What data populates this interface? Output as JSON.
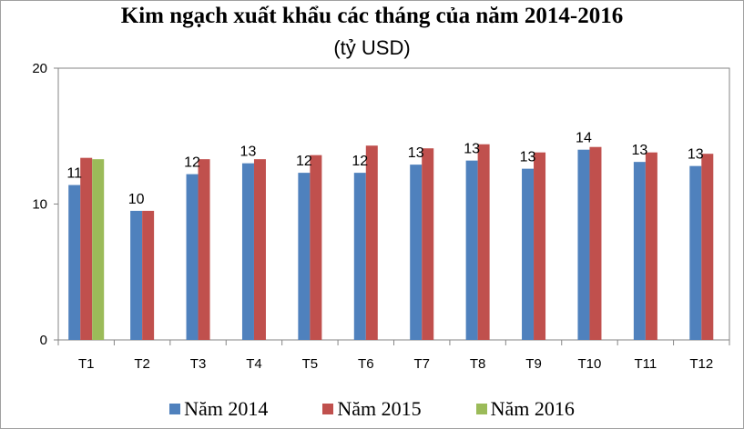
{
  "chart_data": {
    "type": "bar",
    "title": "Kim ngạch xuất khẩu các tháng của năm 2014-2016",
    "subtitle": "(tỷ USD)",
    "categories": [
      "T1",
      "T2",
      "T3",
      "T4",
      "T5",
      "T6",
      "T7",
      "T8",
      "T9",
      "T10",
      "T11",
      "T12"
    ],
    "series": [
      {
        "name": "Năm 2014",
        "color": "#4f81bd",
        "values": [
          11.4,
          9.5,
          12.2,
          13.0,
          12.3,
          12.3,
          12.9,
          13.2,
          12.6,
          14.0,
          13.1,
          12.8
        ]
      },
      {
        "name": "Năm 2015",
        "color": "#c0504d",
        "values": [
          13.4,
          9.5,
          13.3,
          13.3,
          13.6,
          14.3,
          14.1,
          14.4,
          13.8,
          14.2,
          13.8,
          13.7
        ]
      },
      {
        "name": "Năm 2016",
        "color": "#9bbb59",
        "values": [
          13.3,
          null,
          null,
          null,
          null,
          null,
          null,
          null,
          null,
          null,
          null,
          null
        ]
      }
    ],
    "data_labels": [
      "11",
      "10",
      "12",
      "13",
      "12",
      "12",
      "13",
      "13",
      "13",
      "14",
      "13",
      "13"
    ],
    "ylim": [
      0,
      20
    ],
    "yticks": [
      0,
      10,
      20
    ],
    "grid": false,
    "legend": "bottom"
  }
}
